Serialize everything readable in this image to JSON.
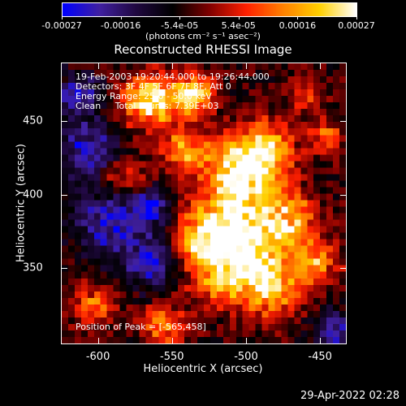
{
  "colorbar": {
    "ticks": [
      "-0.00027",
      "-0.00016",
      "-5.4e-05",
      "5.4e-05",
      "0.00016",
      "0.00027"
    ],
    "units": "(photons cm⁻² s⁻¹ asec⁻²)"
  },
  "title": "Reconstructed RHESSI Image",
  "info": {
    "line1": "19-Feb-2003 19:20:44.000 to 19:26:44.000",
    "line2": "Detectors: 3F 4F 5F 6F 7F 8F, Att 0",
    "line3": "Energy Range: 25.0 - 50.0 keV",
    "line4": "Clean     Total counts: 7.39E+03",
    "peak": "Position of Peak = [-565,458]"
  },
  "chart_data": {
    "type": "heatmap",
    "title": "Reconstructed RHESSI Image",
    "xlabel": "Heliocentric X (arcsec)",
    "ylabel": "Heliocentric Y (arcsec)",
    "xlim": [
      -625,
      -432
    ],
    "ylim": [
      298,
      490
    ],
    "xticks": [
      "-600",
      "-550",
      "-500",
      "-450"
    ],
    "yticks": [
      "450",
      "400",
      "350"
    ],
    "xtick_values": [
      -600,
      -550,
      -500,
      -450
    ],
    "ytick_values": [
      450,
      400,
      350
    ],
    "color_range": [
      -0.00027,
      0.00027
    ],
    "colormap": [
      "#0000ff",
      "#4020a0",
      "#200840",
      "#000000",
      "#800000",
      "#ff2000",
      "#ff8000",
      "#ffd000",
      "#ffffff"
    ],
    "peak": [
      -565,
      458
    ]
  },
  "footer": "29-Apr-2022 02:28"
}
